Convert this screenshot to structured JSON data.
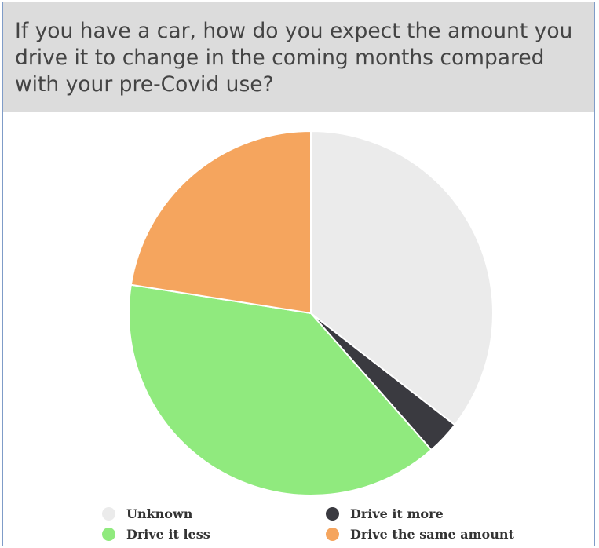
{
  "question": {
    "title": "If you have a car, how do you expect the amount you drive it to change in the coming months compared with your pre-Covid use?"
  },
  "chart_data": {
    "type": "pie",
    "title": "",
    "start_angle_deg": 0,
    "direction": "clockwise",
    "slices": [
      {
        "name": "Unknown",
        "value": 35.5,
        "color": "#ebebeb"
      },
      {
        "name": "Drive it more",
        "value": 3.0,
        "color": "#3a3a40"
      },
      {
        "name": "Drive it less",
        "value": 39.0,
        "color": "#90ea7e"
      },
      {
        "name": "Drive the same amount",
        "value": 22.5,
        "color": "#f5a55e"
      }
    ],
    "legend_position": "bottom"
  },
  "legend": {
    "items": [
      {
        "label": "Unknown",
        "color": "#ebebeb"
      },
      {
        "label": "Drive it more",
        "color": "#3a3a40"
      },
      {
        "label": "Drive it less",
        "color": "#90ea7e"
      },
      {
        "label": "Drive the same amount",
        "color": "#f5a55e"
      }
    ]
  }
}
